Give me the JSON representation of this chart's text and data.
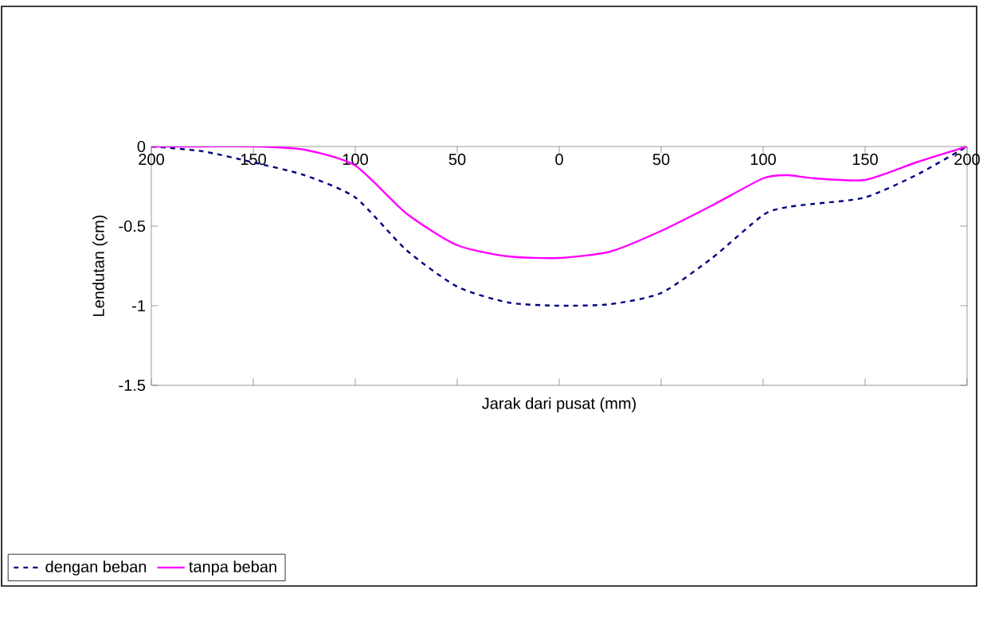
{
  "chart_data": {
    "type": "line",
    "xlabel": "Jarak dari pusat (mm)",
    "ylabel": "Lendutan (cm)",
    "x": [
      -200,
      -175,
      -150,
      -125,
      -100,
      -75,
      -50,
      -25,
      0,
      25,
      50,
      75,
      100,
      112,
      125,
      150,
      175,
      200
    ],
    "series": [
      {
        "name": "dengan beban",
        "color": "#000080",
        "line_style": "dashed",
        "values": [
          0,
          -0.03,
          -0.1,
          -0.18,
          -0.32,
          -0.65,
          -0.88,
          -0.98,
          -1.0,
          -0.99,
          -0.92,
          -0.7,
          -0.43,
          -0.38,
          -0.36,
          -0.32,
          -0.18,
          0
        ]
      },
      {
        "name": "tanpa beban",
        "color": "#ff00ff",
        "line_style": "solid",
        "values": [
          0,
          0,
          0,
          -0.02,
          -0.12,
          -0.42,
          -0.62,
          -0.69,
          -0.7,
          -0.66,
          -0.53,
          -0.37,
          -0.2,
          -0.18,
          -0.2,
          -0.21,
          -0.1,
          0
        ]
      }
    ],
    "xlim": [
      -200,
      200
    ],
    "ylim": [
      -1.5,
      0
    ],
    "xticks": [
      {
        "value": -200,
        "label": "200"
      },
      {
        "value": -150,
        "label": "150"
      },
      {
        "value": -100,
        "label": "100"
      },
      {
        "value": -50,
        "label": "50"
      },
      0,
      50,
      100,
      150,
      200
    ],
    "yticks": [
      0,
      -0.5,
      -1,
      -1.5
    ],
    "grid": false,
    "legend": "bottom left",
    "marker": "none"
  }
}
